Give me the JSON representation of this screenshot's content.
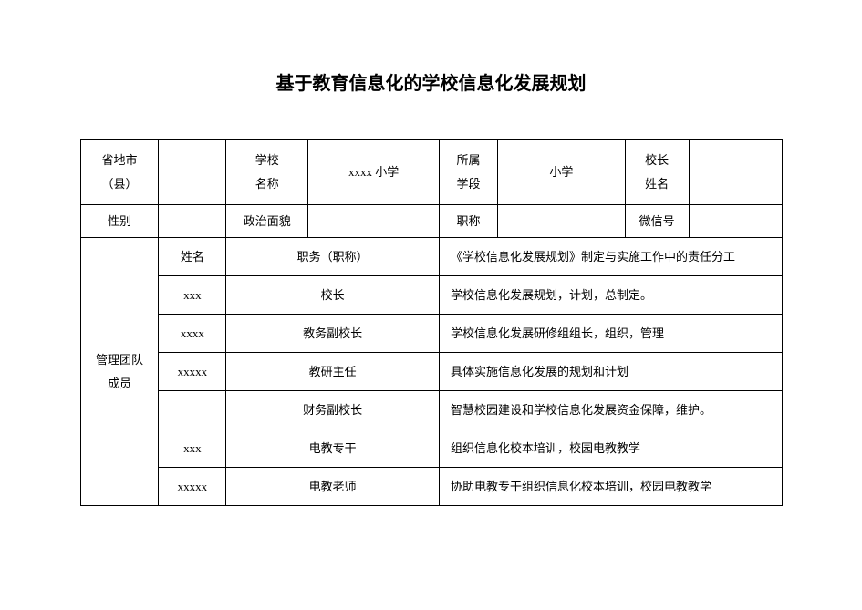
{
  "title": "基于教育信息化的学校信息化发展规划",
  "header": {
    "province_label_l1": "省地市",
    "province_label_l2": "（县）",
    "province_value": "",
    "school_name_label_l1": "学校",
    "school_name_label_l2": "名称",
    "school_name_value": "xxxx 小学",
    "stage_label_l1": "所属",
    "stage_label_l2": "学段",
    "stage_value": "小学",
    "principal_label_l1": "校长",
    "principal_label_l2": "姓名",
    "principal_value": "",
    "gender_label": "性别",
    "gender_value": "",
    "politics_label": "政治面貌",
    "politics_value": "",
    "title_label": "职称",
    "title_value": "",
    "wechat_label": "微信号",
    "wechat_value": ""
  },
  "team_label_l1": "管理团队",
  "team_label_l2": "成员",
  "columns": {
    "name": "姓名",
    "position": "职务（职称）",
    "duty": "《学校信息化发展规划》制定与实施工作中的责任分工"
  },
  "team": [
    {
      "name": "xxx",
      "position": "校长",
      "duty": "学校信息化发展规划，计划，总制定。"
    },
    {
      "name": "xxxx",
      "position": "教务副校长",
      "duty": "学校信息化发展研修组组长，组织，管理"
    },
    {
      "name": "xxxxx",
      "position": "教研主任",
      "duty": "具体实施信息化发展的规划和计划"
    },
    {
      "name": "",
      "position": "财务副校长",
      "duty": "智慧校园建设和学校信息化发展资金保障，维护。"
    },
    {
      "name": "xxx",
      "position": "电教专干",
      "duty": "组织信息化校本培训，校园电教教学"
    },
    {
      "name": "xxxxx",
      "position": "电教老师",
      "duty": "协助电教专干组织信息化校本培训，校园电教教学"
    }
  ]
}
